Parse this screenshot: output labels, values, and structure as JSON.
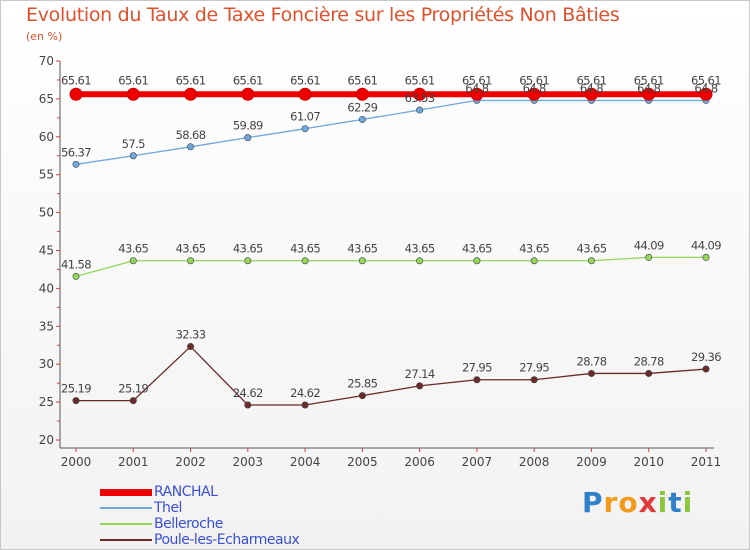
{
  "chart_data": {
    "type": "line",
    "title": "Evolution du Taux de Taxe Foncière sur les Propriétés Non Bâties",
    "ylabel": "(en %)",
    "xlabel": "",
    "ylim": [
      20,
      70
    ],
    "yticks": [
      20,
      25,
      30,
      35,
      40,
      45,
      50,
      55,
      60,
      65,
      70
    ],
    "x": [
      "2000",
      "2001",
      "2002",
      "2003",
      "2004",
      "2005",
      "2006",
      "2007",
      "2008",
      "2009",
      "2010",
      "2011"
    ],
    "series": [
      {
        "name": "RANCHAL",
        "color": "#ee0000",
        "values": [
          65.61,
          65.61,
          65.61,
          65.61,
          65.61,
          65.61,
          65.61,
          65.61,
          65.61,
          65.61,
          65.61,
          65.61
        ],
        "labels": [
          "65.61",
          "65.61",
          "65.61",
          "65.61",
          "65.61",
          "65.61",
          "65.61",
          "65.61",
          "65.61",
          "65.61",
          "65.61",
          "65.61"
        ]
      },
      {
        "name": "Thel",
        "color": "#6fa8dc",
        "values": [
          56.37,
          57.5,
          58.68,
          59.89,
          61.07,
          62.29,
          63.53,
          64.8,
          64.8,
          64.8,
          64.8,
          64.8
        ],
        "labels": [
          "56.37",
          "57.5",
          "58.68",
          "59.89",
          "61.07",
          "62.29",
          "63.53",
          "64.8",
          "64.8",
          "64.8",
          "64.8",
          "64.8"
        ]
      },
      {
        "name": "Belleroche",
        "color": "#93d65a",
        "values": [
          41.58,
          43.65,
          43.65,
          43.65,
          43.65,
          43.65,
          43.65,
          43.65,
          43.65,
          43.65,
          44.09,
          44.09
        ],
        "labels": [
          "41.58",
          "43.65",
          "43.65",
          "43.65",
          "43.65",
          "43.65",
          "43.65",
          "43.65",
          "43.65",
          "43.65",
          "44.09",
          "44.09"
        ]
      },
      {
        "name": "Poule-les-Echarmeaux",
        "color": "#6b2a2a",
        "values": [
          25.19,
          25.19,
          32.33,
          24.62,
          24.62,
          25.85,
          27.14,
          27.95,
          27.95,
          28.78,
          28.78,
          29.36
        ],
        "labels": [
          "25.19",
          "25.19",
          "32.33",
          "24.62",
          "24.62",
          "25.85",
          "27.14",
          "27.95",
          "27.95",
          "28.78",
          "28.78",
          "29.36"
        ]
      }
    ],
    "legend_position": "bottom-left",
    "grid": false
  },
  "brand": {
    "logo_text": "Proxiti"
  }
}
